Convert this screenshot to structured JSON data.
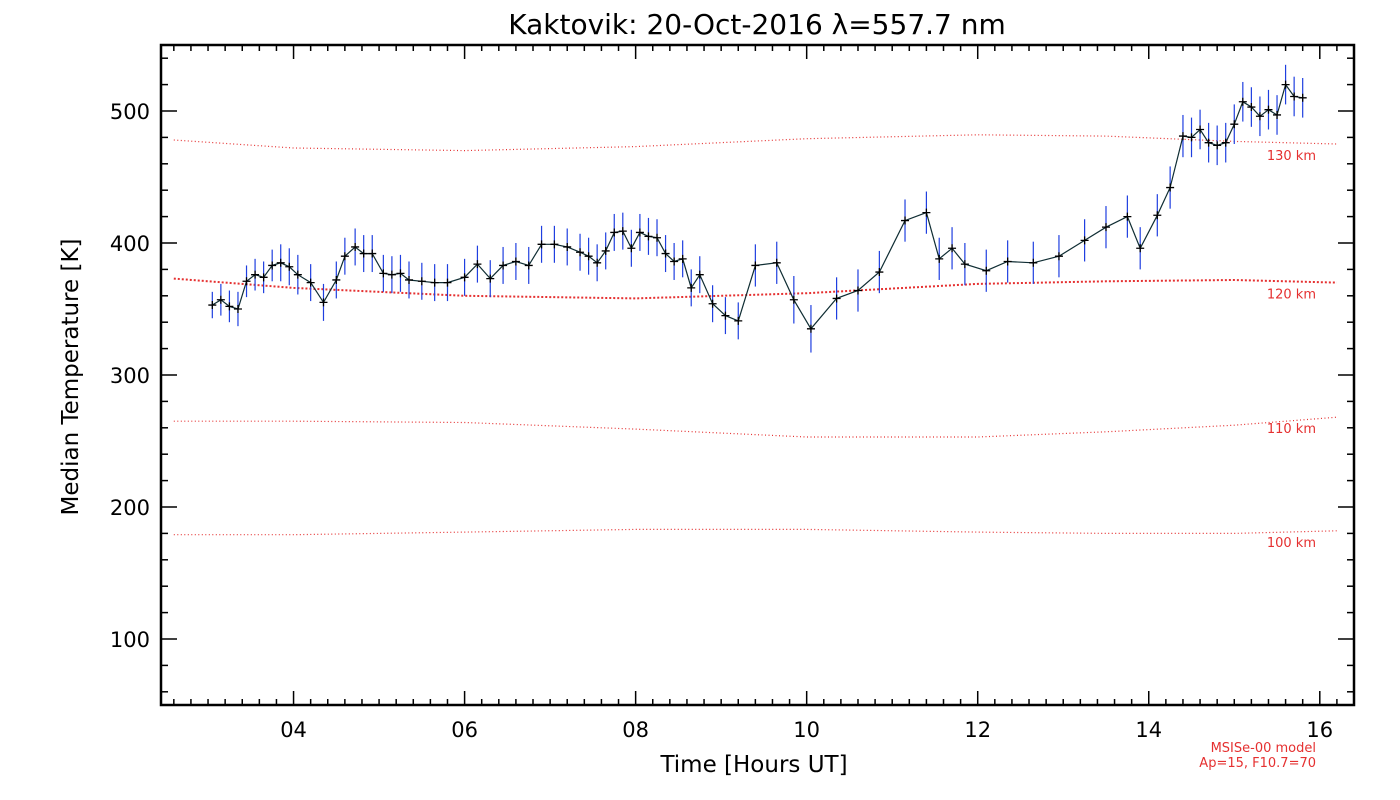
{
  "chart_data": {
    "type": "line",
    "title": "Kaktovik: 20-Oct-2016 λ=557.7 nm",
    "xlabel": "Time [Hours UT]",
    "ylabel": "Median Temperature [K]",
    "xlim": [
      2.45,
      16.4
    ],
    "ylim": [
      50,
      550
    ],
    "x_tick_labels": [
      "04",
      "06",
      "08",
      "10",
      "12",
      "14",
      "16"
    ],
    "y_tick_labels": [
      "100",
      "200",
      "300",
      "400",
      "500"
    ],
    "grid": false,
    "model_note": [
      "MSISe-00 model",
      "Ap=15, F10.7=70"
    ],
    "model_curves": [
      {
        "name": "130 km",
        "x": [
          2.6,
          4,
          6,
          8,
          10,
          12,
          13.5,
          15,
          16.2
        ],
        "y": [
          478,
          472,
          470,
          473,
          479,
          482,
          481,
          477,
          475
        ]
      },
      {
        "name": "120 km",
        "x": [
          2.6,
          4,
          6,
          8,
          10,
          12,
          13.5,
          15,
          16.2
        ],
        "y": [
          373,
          366,
          360,
          358,
          362,
          369,
          371,
          372,
          370
        ]
      },
      {
        "name": "110 km",
        "x": [
          2.6,
          4,
          6,
          8,
          10,
          12,
          13.5,
          15,
          16.2
        ],
        "y": [
          265,
          265,
          264,
          259,
          253,
          253,
          257,
          262,
          268
        ]
      },
      {
        "name": "100 km",
        "x": [
          2.6,
          4,
          6,
          8,
          10,
          12,
          13.5,
          15,
          16.2
        ],
        "y": [
          179,
          179,
          181,
          183,
          183,
          181,
          180,
          180,
          182
        ]
      }
    ],
    "series": [
      {
        "x": [
          3.05,
          3.15,
          3.25,
          3.35,
          3.45,
          3.55,
          3.65,
          3.75,
          3.85,
          3.95,
          4.05,
          4.2,
          4.35,
          4.5,
          4.6,
          4.72,
          4.82,
          4.92,
          5.05,
          5.15,
          5.25,
          5.35,
          5.5,
          5.65,
          5.8,
          6.0,
          6.15,
          6.3,
          6.45,
          6.6,
          6.75,
          6.9,
          7.05,
          7.2,
          7.35,
          7.45,
          7.55,
          7.65,
          7.75,
          7.85,
          7.95,
          8.05,
          8.15,
          8.25,
          8.35,
          8.45,
          8.55,
          8.65,
          8.75,
          8.9,
          9.05,
          9.2,
          9.4,
          9.65,
          9.85,
          10.05,
          10.35,
          10.6,
          10.85,
          11.15,
          11.4,
          11.55,
          11.7,
          11.85,
          12.1,
          12.35,
          12.65,
          12.95,
          13.25,
          13.5,
          13.75,
          13.9,
          14.1,
          14.25,
          14.4,
          14.5,
          14.6,
          14.7,
          14.8,
          14.9,
          15.0,
          15.1,
          15.2,
          15.3,
          15.4,
          15.5,
          15.6,
          15.7,
          15.8
        ],
        "y": [
          353,
          357,
          352,
          350,
          371,
          376,
          374,
          383,
          385,
          382,
          376,
          370,
          355,
          372,
          390,
          397,
          392,
          392,
          377,
          376,
          377,
          372,
          371,
          370,
          370,
          374,
          384,
          373,
          383,
          386,
          383,
          399,
          399,
          397,
          393,
          390,
          385,
          394,
          408,
          409,
          396,
          408,
          405,
          404,
          392,
          386,
          388,
          366,
          376,
          354,
          345,
          341,
          383,
          385,
          357,
          335,
          358,
          364,
          378,
          417,
          423,
          388,
          396,
          384,
          379,
          386,
          385,
          390,
          402,
          412,
          420,
          396,
          421,
          442,
          481,
          480,
          486,
          476,
          474,
          476,
          490,
          507,
          503,
          496,
          501,
          497,
          520,
          511,
          510
        ],
        "err": [
          10,
          12,
          12,
          13,
          12,
          12,
          12,
          12,
          14,
          14,
          15,
          14,
          14,
          14,
          14,
          14,
          14,
          14,
          14,
          14,
          14,
          14,
          14,
          14,
          14,
          14,
          14,
          14,
          14,
          14,
          14,
          14,
          14,
          14,
          14,
          14,
          14,
          14,
          14,
          14,
          14,
          14,
          14,
          14,
          14,
          14,
          14,
          14,
          14,
          14,
          14,
          14,
          16,
          16,
          18,
          18,
          16,
          16,
          16,
          16,
          16,
          16,
          16,
          16,
          16,
          16,
          16,
          16,
          16,
          16,
          16,
          16,
          16,
          16,
          16,
          15,
          15,
          15,
          15,
          15,
          15,
          15,
          15,
          15,
          15,
          15,
          15,
          15,
          15
        ]
      }
    ]
  }
}
